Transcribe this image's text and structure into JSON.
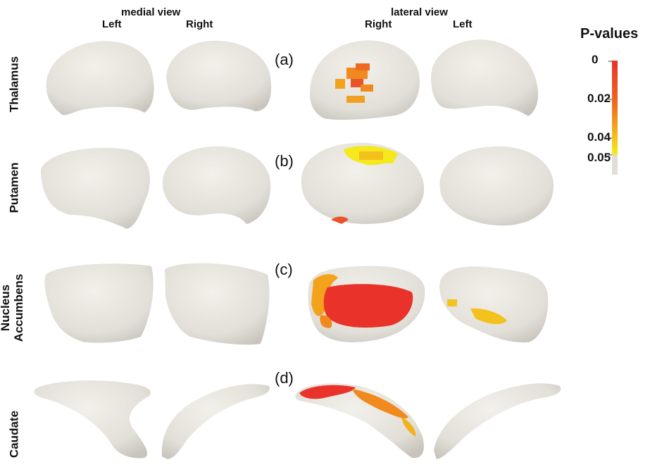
{
  "headers": {
    "medial": "medial view",
    "lateral": "lateral view",
    "medial_left": "Left",
    "medial_right": "Right",
    "lateral_right": "Right",
    "lateral_left": "Left"
  },
  "rows": [
    {
      "label": "Thalamus",
      "panel": "(a)"
    },
    {
      "label": "Putamen",
      "panel": "(b)"
    },
    {
      "label_line1": "Nucleus",
      "label_line2": "Accumbens",
      "panel": "(c)"
    },
    {
      "label": "Caudate",
      "panel": "(d)"
    }
  ],
  "legend": {
    "title": "P-values",
    "ticks": [
      "0",
      "0.02",
      "0.04",
      "0.05"
    ],
    "colors": {
      "high": "#e8322a",
      "mid": "#f08a1e",
      "low": "#f5e81c",
      "none": "#e2ded6"
    }
  },
  "colors": {
    "surface": "#e6e3dc",
    "shade": "#c9c5bc"
  }
}
